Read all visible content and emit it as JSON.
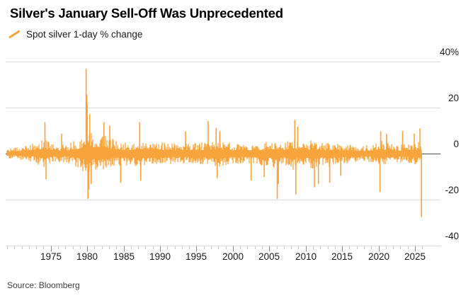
{
  "header": {
    "title": "Silver's January Sell-Off Was Unprecedented",
    "legend_label": "Spot silver 1-day % change"
  },
  "footer": {
    "source": "Source: Bloomberg"
  },
  "chart_data": {
    "type": "line",
    "title": "Silver's January Sell-Off Was Unprecedented",
    "series_name": "Spot silver 1-day % change",
    "unit": "percent",
    "x_range": [
      1969,
      2026
    ],
    "ylim": [
      -45,
      43
    ],
    "grid": true,
    "legend_position": "top-left",
    "y_axis": {
      "side": "right",
      "ticks": [
        {
          "label": "40%",
          "value": 40
        },
        {
          "label": "20",
          "value": 20
        },
        {
          "label": "0",
          "value": 0
        },
        {
          "label": "-20",
          "value": -20
        },
        {
          "label": "-40",
          "value": -40
        }
      ]
    },
    "x_axis": {
      "major_ticks": [
        1975,
        1980,
        1985,
        1990,
        1995,
        2000,
        2005,
        2010,
        2015,
        2020,
        2025
      ],
      "minor_tick_interval_years": 1
    },
    "colors": {
      "series": "#F8A43C",
      "grid": "#DBDBDB",
      "zero_line": "#4D4D4D",
      "major_tick": "#8C8C8C",
      "minor_tick": "#C9C9C9"
    },
    "volatility_profile": [
      {
        "year": 1969,
        "up": 2.4,
        "down": 2.2
      },
      {
        "year": 1971,
        "up": 3.0,
        "down": 2.8
      },
      {
        "year": 1972,
        "up": 4.0,
        "down": 3.5
      },
      {
        "year": 1973,
        "up": 5.0,
        "down": 4.5
      },
      {
        "year": 1974,
        "up": 6.5,
        "down": 6.0
      },
      {
        "year": 1975,
        "up": 5.0,
        "down": 4.8
      },
      {
        "year": 1976,
        "up": 4.0,
        "down": 4.0
      },
      {
        "year": 1977,
        "up": 4.0,
        "down": 4.0
      },
      {
        "year": 1978,
        "up": 5.5,
        "down": 5.0
      },
      {
        "year": 1979,
        "up": 7.0,
        "down": 6.5
      },
      {
        "year": 1979.6,
        "up": 10.0,
        "down": 8.5
      },
      {
        "year": 1979.9,
        "up": 14.0,
        "down": 12.0
      },
      {
        "year": 1980.2,
        "up": 13.0,
        "down": 12.0
      },
      {
        "year": 1980.6,
        "up": 10.0,
        "down": 9.0
      },
      {
        "year": 1981,
        "up": 8.0,
        "down": 7.5
      },
      {
        "year": 1982,
        "up": 8.5,
        "down": 8.0
      },
      {
        "year": 1983,
        "up": 7.0,
        "down": 7.0
      },
      {
        "year": 1984,
        "up": 6.0,
        "down": 6.0
      },
      {
        "year": 1985,
        "up": 5.0,
        "down": 5.0
      },
      {
        "year": 1986,
        "up": 5.0,
        "down": 5.5
      },
      {
        "year": 1987,
        "up": 6.5,
        "down": 6.5
      },
      {
        "year": 1988,
        "up": 6.0,
        "down": 6.0
      },
      {
        "year": 1990,
        "up": 5.0,
        "down": 5.0
      },
      {
        "year": 1992,
        "up": 4.5,
        "down": 4.5
      },
      {
        "year": 1994,
        "up": 4.5,
        "down": 4.5
      },
      {
        "year": 1996,
        "up": 5.0,
        "down": 5.0
      },
      {
        "year": 1997,
        "up": 5.5,
        "down": 6.0
      },
      {
        "year": 1998,
        "up": 6.0,
        "down": 6.0
      },
      {
        "year": 2000,
        "up": 4.5,
        "down": 4.5
      },
      {
        "year": 2002,
        "up": 4.0,
        "down": 4.5
      },
      {
        "year": 2004,
        "up": 5.0,
        "down": 5.5
      },
      {
        "year": 2006,
        "up": 6.0,
        "down": 6.5
      },
      {
        "year": 2007,
        "up": 5.0,
        "down": 5.0
      },
      {
        "year": 2008,
        "up": 7.0,
        "down": 8.0
      },
      {
        "year": 2009,
        "up": 6.0,
        "down": 6.0
      },
      {
        "year": 2010,
        "up": 5.0,
        "down": 5.5
      },
      {
        "year": 2011,
        "up": 6.5,
        "down": 7.5
      },
      {
        "year": 2012,
        "up": 5.0,
        "down": 5.0
      },
      {
        "year": 2013,
        "up": 5.0,
        "down": 6.5
      },
      {
        "year": 2014,
        "up": 4.5,
        "down": 5.0
      },
      {
        "year": 2016,
        "up": 4.5,
        "down": 4.5
      },
      {
        "year": 2017,
        "up": 3.5,
        "down": 3.5
      },
      {
        "year": 2018,
        "up": 3.5,
        "down": 3.5
      },
      {
        "year": 2019,
        "up": 4.0,
        "down": 4.0
      },
      {
        "year": 2020,
        "up": 6.0,
        "down": 6.5
      },
      {
        "year": 2021,
        "up": 5.0,
        "down": 5.0
      },
      {
        "year": 2022,
        "up": 4.5,
        "down": 4.5
      },
      {
        "year": 2023,
        "up": 4.0,
        "down": 4.0
      },
      {
        "year": 2024,
        "up": 4.5,
        "down": 4.5
      },
      {
        "year": 2025,
        "up": 5.0,
        "down": 5.0
      },
      {
        "year": 2025.92,
        "up": 5.5,
        "down": 5.0
      }
    ],
    "notable_moves": [
      {
        "year": 1974.2,
        "change_pct": 13.5
      },
      {
        "year": 1974.35,
        "change_pct": -11
      },
      {
        "year": 1976.5,
        "change_pct": 8.5
      },
      {
        "year": 1979.85,
        "change_pct": 36.8
      },
      {
        "year": 1979.95,
        "change_pct": 25.5
      },
      {
        "year": 1980.0,
        "change_pct": 21
      },
      {
        "year": 1980.1,
        "change_pct": -19.5
      },
      {
        "year": 1980.22,
        "change_pct": -15.5
      },
      {
        "year": 1980.35,
        "change_pct": 17
      },
      {
        "year": 1980.55,
        "change_pct": -13
      },
      {
        "year": 1982.3,
        "change_pct": 13.5
      },
      {
        "year": 1983.1,
        "change_pct": 12
      },
      {
        "year": 1984.6,
        "change_pct": -12.5
      },
      {
        "year": 1987.2,
        "change_pct": 13.5
      },
      {
        "year": 1987.35,
        "change_pct": -11.5
      },
      {
        "year": 1993.5,
        "change_pct": 9.5
      },
      {
        "year": 1996.6,
        "change_pct": 14
      },
      {
        "year": 1997.7,
        "change_pct": 11
      },
      {
        "year": 1997.85,
        "change_pct": -10.5
      },
      {
        "year": 1998.2,
        "change_pct": 9.5
      },
      {
        "year": 2002.5,
        "change_pct": -11.5
      },
      {
        "year": 2004.3,
        "change_pct": -10
      },
      {
        "year": 2006.1,
        "change_pct": -19.5
      },
      {
        "year": 2006.25,
        "change_pct": -13
      },
      {
        "year": 2008.5,
        "change_pct": 14.5
      },
      {
        "year": 2008.65,
        "change_pct": -17.5
      },
      {
        "year": 2008.9,
        "change_pct": 11.5
      },
      {
        "year": 2011.2,
        "change_pct": -14.5
      },
      {
        "year": 2011.75,
        "change_pct": -13
      },
      {
        "year": 2013.3,
        "change_pct": -12.5
      },
      {
        "year": 2014.8,
        "change_pct": -9.5
      },
      {
        "year": 2020.2,
        "change_pct": -16.5
      },
      {
        "year": 2020.3,
        "change_pct": 9.5
      },
      {
        "year": 2021.1,
        "change_pct": 8.5
      },
      {
        "year": 2023.3,
        "change_pct": 9.7
      },
      {
        "year": 2024.9,
        "change_pct": 8.5
      },
      {
        "year": 2025.68,
        "change_pct": 10.8
      },
      {
        "year": 2025.9,
        "change_pct": -27.4
      }
    ]
  }
}
